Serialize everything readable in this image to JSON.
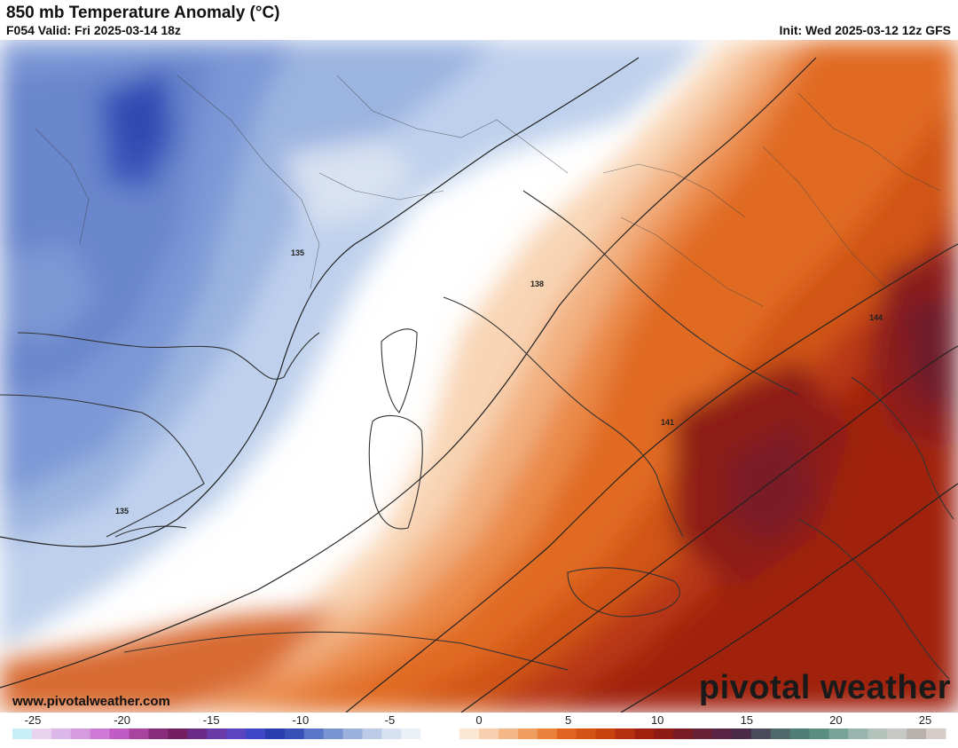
{
  "header": {
    "title": "850 mb Temperature Anomaly (°C)",
    "valid": "F054 Valid: Fri 2025-03-14 18z",
    "init": "Init: Wed 2025-03-12 12z GFS"
  },
  "map": {
    "height_labels": [
      "135",
      "138",
      "141",
      "144",
      "135"
    ],
    "watermark_site": "www.pivotalweather.com",
    "watermark_brand": "pivotal weather"
  },
  "colorbar": {
    "ticks": [
      "-25",
      "-20",
      "-15",
      "-10",
      "-5",
      "0",
      "5",
      "10",
      "15",
      "20",
      "25"
    ],
    "colors": [
      "#c8eef7",
      "#e8d4ef",
      "#dcb8e8",
      "#d69cdf",
      "#ce7ad6",
      "#c05cc4",
      "#a8449e",
      "#8a2c7c",
      "#742060",
      "#6a2a86",
      "#6a3aa8",
      "#5a44c0",
      "#3e48c6",
      "#2a3eb0",
      "#3850b8",
      "#5a76c8",
      "#7a94d2",
      "#9cb2de",
      "#bccce8",
      "#d6e2f2",
      "#ecf1f8",
      "#ffffff",
      "#ffffff",
      "#fbe6d4",
      "#f8d0b0",
      "#f4b888",
      "#f09e60",
      "#ea803a",
      "#e06420",
      "#d45214",
      "#c84210",
      "#b63010",
      "#a0200e",
      "#8e1a14",
      "#7a1a22",
      "#682238",
      "#5a2444",
      "#4a2a48",
      "#4a4a5a",
      "#506a6c",
      "#4e7e74",
      "#5a8e80",
      "#78a498",
      "#98b4ac",
      "#b4c2bc",
      "#c8c8c4",
      "#b8b0ac",
      "#d8ccc8"
    ],
    "accent_warm": "#c84210",
    "accent_cold": "#3e48c6"
  }
}
